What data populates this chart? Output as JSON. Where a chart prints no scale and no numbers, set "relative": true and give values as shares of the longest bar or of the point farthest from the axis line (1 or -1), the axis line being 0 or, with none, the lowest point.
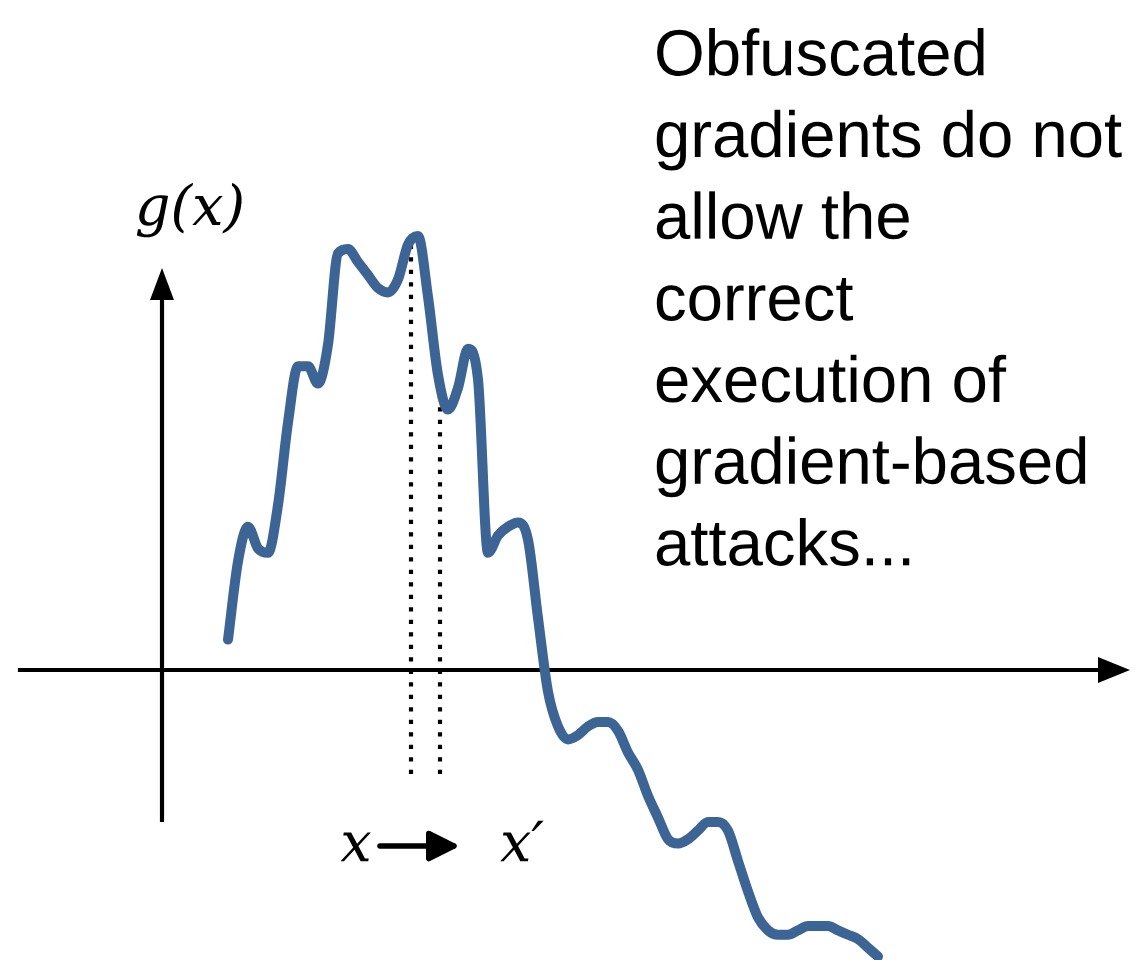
{
  "chart_data": {
    "type": "line",
    "relative": true,
    "ylabel": "g(x)",
    "categories": [
      null,
      null,
      null,
      null,
      null,
      null,
      null,
      null,
      null,
      null,
      null,
      null,
      null,
      null,
      null,
      null,
      null,
      null,
      null,
      null,
      null,
      null,
      null,
      null,
      null,
      null,
      null,
      null,
      null,
      null,
      null,
      null,
      null,
      null,
      null,
      null,
      null,
      null,
      null,
      null,
      null,
      null,
      null,
      null,
      null,
      null,
      null,
      null,
      null,
      null,
      null,
      null,
      null,
      null,
      null,
      null,
      null,
      null,
      null,
      null,
      null,
      null,
      null,
      null,
      null,
      null
    ],
    "series": [
      {
        "color": "#3c6494",
        "values": [
          0.07,
          0.25,
          0.33,
          0.28,
          0.27,
          0.38,
          0.57,
          0.7,
          0.7,
          0.66,
          0.75,
          0.96,
          0.97,
          0.94,
          0.91,
          0.88,
          0.87,
          0.9,
          0.98,
          1.0,
          0.86,
          0.68,
          0.6,
          0.65,
          0.74,
          0.67,
          0.27,
          0.31,
          0.33,
          0.34,
          0.3,
          0.12,
          -0.05,
          -0.13,
          -0.16,
          -0.15,
          -0.13,
          -0.12,
          -0.12,
          -0.14,
          -0.19,
          -0.23,
          -0.29,
          -0.34,
          -0.39,
          -0.4,
          -0.39,
          -0.37,
          -0.35,
          -0.35,
          -0.37,
          -0.44,
          -0.51,
          -0.57,
          -0.6,
          -0.61,
          -0.61,
          -0.6,
          -0.59,
          -0.59,
          -0.59,
          -0.6,
          -0.61,
          -0.62,
          -0.64,
          -0.66
        ]
      }
    ],
    "annotations": [
      "Obfuscated\ngradients do not\nallow the\ncorrect\nexecution of\ngradient-based\nattacks...",
      "x",
      "x′"
    ]
  }
}
